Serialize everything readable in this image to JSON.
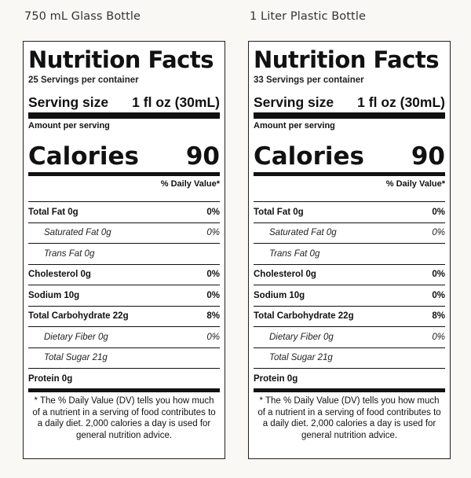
{
  "labels": [
    {
      "product_title": "750 mL Glass Bottle",
      "nf_title": "Nutrition Facts",
      "servings": "25 Servings per container",
      "serving_size_label": "Serving size",
      "serving_size_value": "1 fl oz (30mL)",
      "amount_per_serving": "Amount per serving",
      "calories_label": "Calories",
      "calories_value": "90",
      "daily_value_header": "% Daily Value*",
      "nutrients": [
        {
          "name": "Total Fat 0g",
          "dv": "0%"
        },
        {
          "name": "Saturated Fat 0g",
          "dv": "0%"
        },
        {
          "name": "Trans Fat 0g",
          "dv": ""
        },
        {
          "name": "Cholesterol 0g",
          "dv": "0%"
        },
        {
          "name": "Sodium 10g",
          "dv": "0%"
        },
        {
          "name": "Total Carbohydrate 22g",
          "dv": "8%"
        },
        {
          "name": "Dietary Fiber 0g",
          "dv": "0%"
        },
        {
          "name": "Total Sugar 21g",
          "dv": ""
        },
        {
          "name": "Protein 0g",
          "dv": ""
        }
      ],
      "footnote": "* The % Daily Value (DV) tells you how much of a nutrient in a serving of food contributes to a daily diet. 2,000 calories a day is used for general nutrition advice."
    },
    {
      "product_title": "1 Liter Plastic Bottle",
      "nf_title": "Nutrition Facts",
      "servings": "33 Servings per container",
      "serving_size_label": "Serving size",
      "serving_size_value": "1 fl oz (30mL)",
      "amount_per_serving": "Amount per serving",
      "calories_label": "Calories",
      "calories_value": "90",
      "daily_value_header": "% Daily Value*",
      "nutrients": [
        {
          "name": "Total Fat 0g",
          "dv": "0%"
        },
        {
          "name": "Saturated Fat 0g",
          "dv": "0%"
        },
        {
          "name": "Trans Fat 0g",
          "dv": ""
        },
        {
          "name": "Cholesterol 0g",
          "dv": "0%"
        },
        {
          "name": "Sodium 10g",
          "dv": "0%"
        },
        {
          "name": "Total Carbohydrate 22g",
          "dv": "8%"
        },
        {
          "name": "Dietary Fiber 0g",
          "dv": "0%"
        },
        {
          "name": "Total Sugar 21g",
          "dv": ""
        },
        {
          "name": "Protein 0g",
          "dv": ""
        }
      ],
      "footnote": "* The % Daily Value (DV) tells you how much of a nutrient in a serving of food contributes to a daily diet. 2,000 calories a day is used for general nutrition advice."
    }
  ]
}
